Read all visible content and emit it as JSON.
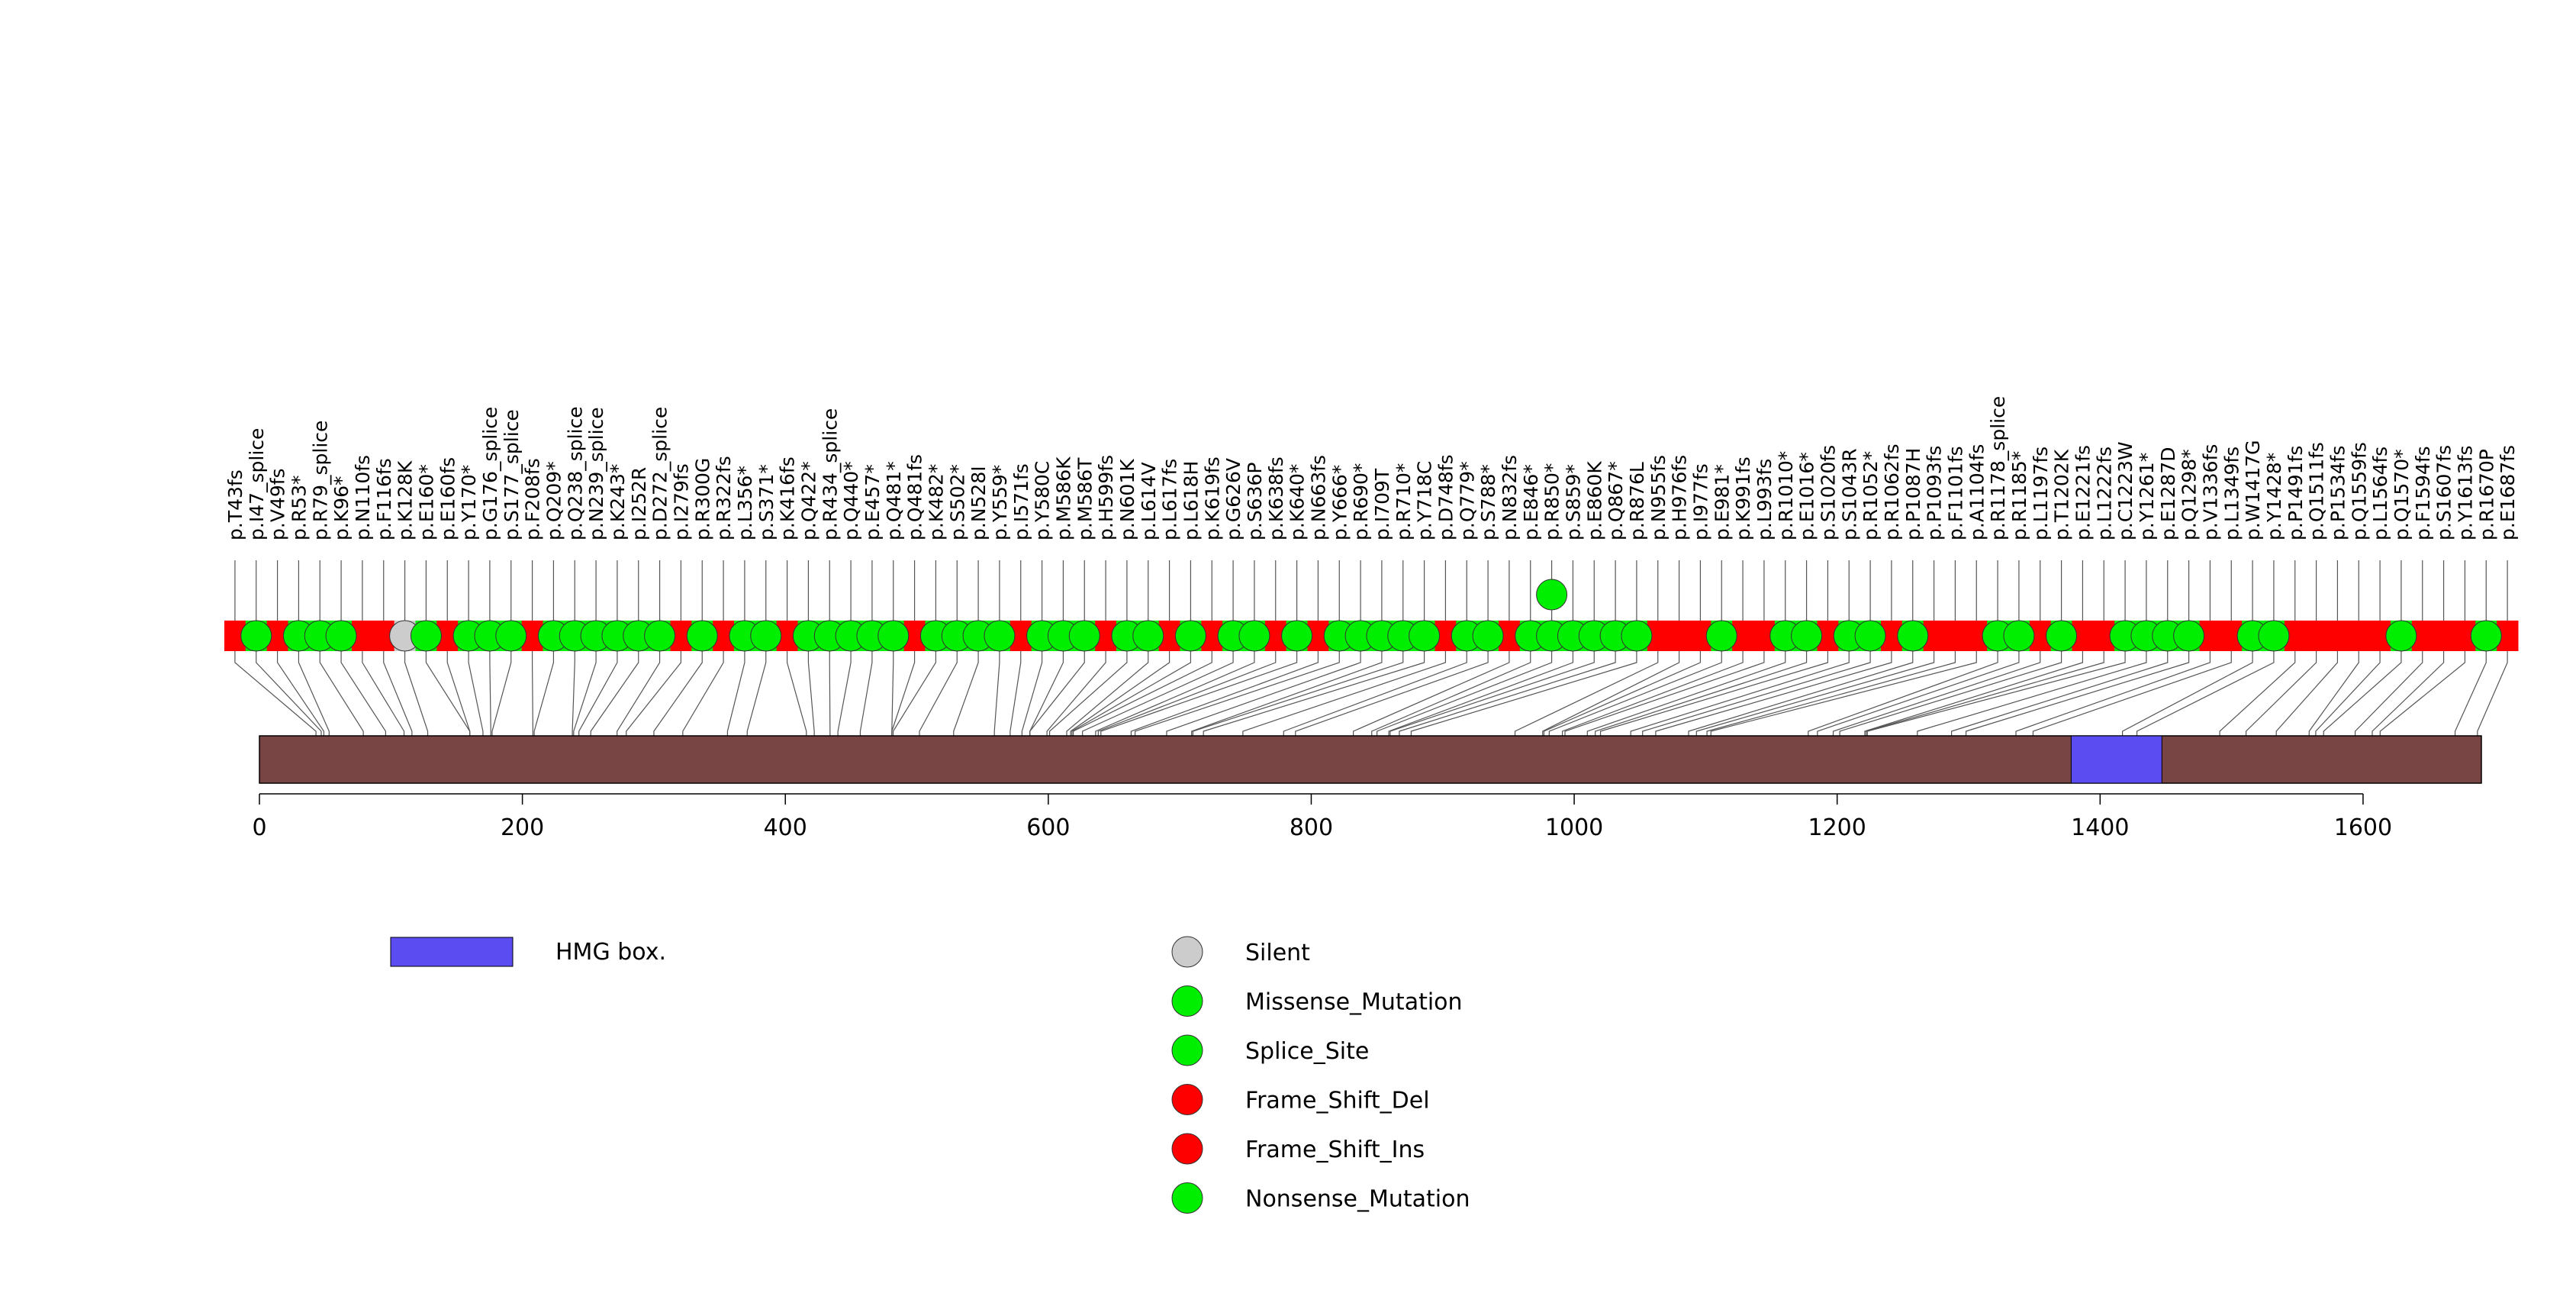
{
  "chart_data": {
    "type": "lollipop",
    "title": "",
    "xlabel": "",
    "ylabel": "",
    "xlim": [
      0,
      1690
    ],
    "protein_length": 1690,
    "x_ticks": [
      0,
      200,
      400,
      600,
      800,
      1000,
      1200,
      1400,
      1600
    ],
    "x_tick_labels": [
      "0",
      "200",
      "400",
      "600",
      "800",
      "1000",
      "1200",
      "1400",
      "1600"
    ],
    "domains": [
      {
        "name": "HMG box.",
        "start": 1378,
        "end": 1447,
        "color": "#5a4cf0"
      }
    ],
    "protein_color": "#784444",
    "mutation_colors": {
      "Silent": "#cccccc",
      "Missense_Mutation": "#00ee00",
      "Splice_Site": "#00ee00",
      "Frame_Shift_Del": "#ff0000",
      "Frame_Shift_Ins": "#ff0000",
      "Nonsense_Mutation": "#00ee00"
    },
    "legend": {
      "position": "bottom",
      "domain_entries": [
        "HMG box."
      ],
      "mutation_entries": [
        "Silent",
        "Missense_Mutation",
        "Splice_Site",
        "Frame_Shift_Del",
        "Frame_Shift_Ins",
        "Nonsense_Mutation"
      ]
    },
    "mutations": [
      {
        "label": "p.T43fs",
        "pos": 43,
        "type": "Frame_Shift_Del",
        "count": 1
      },
      {
        "label": "p.I47_splice",
        "pos": 47,
        "type": "Splice_Site",
        "count": 1
      },
      {
        "label": "p.V49fs",
        "pos": 49,
        "type": "Frame_Shift_Ins",
        "count": 1
      },
      {
        "label": "p.R53*",
        "pos": 53,
        "type": "Nonsense_Mutation",
        "count": 1
      },
      {
        "label": "p.R79_splice",
        "pos": 79,
        "type": "Splice_Site",
        "count": 1
      },
      {
        "label": "p.K96*",
        "pos": 96,
        "type": "Nonsense_Mutation",
        "count": 1
      },
      {
        "label": "p.N110fs",
        "pos": 110,
        "type": "Frame_Shift_Del",
        "count": 1
      },
      {
        "label": "p.F116fs",
        "pos": 116,
        "type": "Frame_Shift_Del",
        "count": 1
      },
      {
        "label": "p.K128K",
        "pos": 128,
        "type": "Silent",
        "count": 1
      },
      {
        "label": "p.E160*",
        "pos": 160,
        "type": "Nonsense_Mutation",
        "count": 1
      },
      {
        "label": "p.E160fs",
        "pos": 160,
        "type": "Frame_Shift_Del",
        "count": 1
      },
      {
        "label": "p.Y170*",
        "pos": 170,
        "type": "Nonsense_Mutation",
        "count": 1
      },
      {
        "label": "p.G176_splice",
        "pos": 176,
        "type": "Splice_Site",
        "count": 1
      },
      {
        "label": "p.S177_splice",
        "pos": 177,
        "type": "Splice_Site",
        "count": 1
      },
      {
        "label": "p.F208fs",
        "pos": 208,
        "type": "Frame_Shift_Del",
        "count": 1
      },
      {
        "label": "p.Q209*",
        "pos": 209,
        "type": "Nonsense_Mutation",
        "count": 1
      },
      {
        "label": "p.Q238_splice",
        "pos": 238,
        "type": "Splice_Site",
        "count": 1
      },
      {
        "label": "p.N239_splice",
        "pos": 239,
        "type": "Splice_Site",
        "count": 1
      },
      {
        "label": "p.K243*",
        "pos": 243,
        "type": "Nonsense_Mutation",
        "count": 1
      },
      {
        "label": "p.I252R",
        "pos": 252,
        "type": "Missense_Mutation",
        "count": 1
      },
      {
        "label": "p.D272_splice",
        "pos": 272,
        "type": "Splice_Site",
        "count": 1
      },
      {
        "label": "p.I279fs",
        "pos": 279,
        "type": "Frame_Shift_Del",
        "count": 1
      },
      {
        "label": "p.R300G",
        "pos": 300,
        "type": "Missense_Mutation",
        "count": 1
      },
      {
        "label": "p.R322fs",
        "pos": 322,
        "type": "Frame_Shift_Del",
        "count": 1
      },
      {
        "label": "p.L356*",
        "pos": 356,
        "type": "Nonsense_Mutation",
        "count": 1
      },
      {
        "label": "p.S371*",
        "pos": 371,
        "type": "Nonsense_Mutation",
        "count": 1
      },
      {
        "label": "p.K416fs",
        "pos": 416,
        "type": "Frame_Shift_Del",
        "count": 1
      },
      {
        "label": "p.Q422*",
        "pos": 422,
        "type": "Nonsense_Mutation",
        "count": 1
      },
      {
        "label": "p.R434_splice",
        "pos": 434,
        "type": "Splice_Site",
        "count": 1
      },
      {
        "label": "p.Q440*",
        "pos": 440,
        "type": "Nonsense_Mutation",
        "count": 1
      },
      {
        "label": "p.E457*",
        "pos": 457,
        "type": "Nonsense_Mutation",
        "count": 1
      },
      {
        "label": "p.Q481*",
        "pos": 481,
        "type": "Nonsense_Mutation",
        "count": 1
      },
      {
        "label": "p.Q481fs",
        "pos": 481,
        "type": "Frame_Shift_Del",
        "count": 1
      },
      {
        "label": "p.K482*",
        "pos": 482,
        "type": "Nonsense_Mutation",
        "count": 1
      },
      {
        "label": "p.S502*",
        "pos": 502,
        "type": "Nonsense_Mutation",
        "count": 1
      },
      {
        "label": "p.N528I",
        "pos": 528,
        "type": "Missense_Mutation",
        "count": 1
      },
      {
        "label": "p.Y559*",
        "pos": 559,
        "type": "Nonsense_Mutation",
        "count": 1
      },
      {
        "label": "p.I571fs",
        "pos": 571,
        "type": "Frame_Shift_Del",
        "count": 1
      },
      {
        "label": "p.Y580C",
        "pos": 580,
        "type": "Missense_Mutation",
        "count": 1
      },
      {
        "label": "p.M586K",
        "pos": 586,
        "type": "Missense_Mutation",
        "count": 1
      },
      {
        "label": "p.M586T",
        "pos": 586,
        "type": "Missense_Mutation",
        "count": 1
      },
      {
        "label": "p.H599fs",
        "pos": 599,
        "type": "Frame_Shift_Del",
        "count": 1
      },
      {
        "label": "p.N601K",
        "pos": 601,
        "type": "Missense_Mutation",
        "count": 1
      },
      {
        "label": "p.L614V",
        "pos": 614,
        "type": "Missense_Mutation",
        "count": 1
      },
      {
        "label": "p.L617fs",
        "pos": 617,
        "type": "Frame_Shift_Del",
        "count": 1
      },
      {
        "label": "p.L618H",
        "pos": 618,
        "type": "Missense_Mutation",
        "count": 1
      },
      {
        "label": "p.K619fs",
        "pos": 619,
        "type": "Frame_Shift_Del",
        "count": 1
      },
      {
        "label": "p.G626V",
        "pos": 626,
        "type": "Missense_Mutation",
        "count": 1
      },
      {
        "label": "p.S636P",
        "pos": 636,
        "type": "Missense_Mutation",
        "count": 1
      },
      {
        "label": "p.K638fs",
        "pos": 638,
        "type": "Frame_Shift_Del",
        "count": 1
      },
      {
        "label": "p.K640*",
        "pos": 640,
        "type": "Nonsense_Mutation",
        "count": 1
      },
      {
        "label": "p.N663fs",
        "pos": 663,
        "type": "Frame_Shift_Del",
        "count": 1
      },
      {
        "label": "p.Y666*",
        "pos": 666,
        "type": "Nonsense_Mutation",
        "count": 1
      },
      {
        "label": "p.R690*",
        "pos": 690,
        "type": "Nonsense_Mutation",
        "count": 1
      },
      {
        "label": "p.I709T",
        "pos": 709,
        "type": "Missense_Mutation",
        "count": 1
      },
      {
        "label": "p.R710*",
        "pos": 710,
        "type": "Nonsense_Mutation",
        "count": 1
      },
      {
        "label": "p.Y718C",
        "pos": 718,
        "type": "Missense_Mutation",
        "count": 1
      },
      {
        "label": "p.D748fs",
        "pos": 748,
        "type": "Frame_Shift_Del",
        "count": 1
      },
      {
        "label": "p.Q779*",
        "pos": 779,
        "type": "Nonsense_Mutation",
        "count": 1
      },
      {
        "label": "p.S788*",
        "pos": 788,
        "type": "Nonsense_Mutation",
        "count": 1
      },
      {
        "label": "p.N832fs",
        "pos": 832,
        "type": "Frame_Shift_Del",
        "count": 1
      },
      {
        "label": "p.E846*",
        "pos": 846,
        "type": "Nonsense_Mutation",
        "count": 1
      },
      {
        "label": "p.R850*",
        "pos": 850,
        "type": "Nonsense_Mutation",
        "count": 2
      },
      {
        "label": "p.S859*",
        "pos": 859,
        "type": "Nonsense_Mutation",
        "count": 1
      },
      {
        "label": "p.E860K",
        "pos": 860,
        "type": "Missense_Mutation",
        "count": 1
      },
      {
        "label": "p.Q867*",
        "pos": 867,
        "type": "Nonsense_Mutation",
        "count": 1
      },
      {
        "label": "p.R876L",
        "pos": 876,
        "type": "Missense_Mutation",
        "count": 1
      },
      {
        "label": "p.N955fs",
        "pos": 955,
        "type": "Frame_Shift_Del",
        "count": 1
      },
      {
        "label": "p.H976fs",
        "pos": 976,
        "type": "Frame_Shift_Del",
        "count": 1
      },
      {
        "label": "p.I977fs",
        "pos": 977,
        "type": "Frame_Shift_Del",
        "count": 1
      },
      {
        "label": "p.E981*",
        "pos": 981,
        "type": "Nonsense_Mutation",
        "count": 1
      },
      {
        "label": "p.K991fs",
        "pos": 991,
        "type": "Frame_Shift_Del",
        "count": 1
      },
      {
        "label": "p.L993fs",
        "pos": 993,
        "type": "Frame_Shift_Del",
        "count": 1
      },
      {
        "label": "p.R1010*",
        "pos": 1010,
        "type": "Nonsense_Mutation",
        "count": 1
      },
      {
        "label": "p.E1016*",
        "pos": 1016,
        "type": "Nonsense_Mutation",
        "count": 1
      },
      {
        "label": "p.S1020fs",
        "pos": 1020,
        "type": "Frame_Shift_Del",
        "count": 1
      },
      {
        "label": "p.S1043R",
        "pos": 1043,
        "type": "Missense_Mutation",
        "count": 1
      },
      {
        "label": "p.R1052*",
        "pos": 1052,
        "type": "Nonsense_Mutation",
        "count": 1
      },
      {
        "label": "p.R1062fs",
        "pos": 1062,
        "type": "Frame_Shift_Del",
        "count": 1
      },
      {
        "label": "p.P1087H",
        "pos": 1087,
        "type": "Missense_Mutation",
        "count": 1
      },
      {
        "label": "p.P1093fs",
        "pos": 1093,
        "type": "Frame_Shift_Del",
        "count": 1
      },
      {
        "label": "p.F1101fs",
        "pos": 1101,
        "type": "Frame_Shift_Del",
        "count": 1
      },
      {
        "label": "p.A1104fs",
        "pos": 1104,
        "type": "Frame_Shift_Del",
        "count": 1
      },
      {
        "label": "p.R1178_splice",
        "pos": 1178,
        "type": "Splice_Site",
        "count": 1
      },
      {
        "label": "p.R1185*",
        "pos": 1185,
        "type": "Nonsense_Mutation",
        "count": 1
      },
      {
        "label": "p.L1197fs",
        "pos": 1197,
        "type": "Frame_Shift_Del",
        "count": 1
      },
      {
        "label": "p.T1202K",
        "pos": 1202,
        "type": "Missense_Mutation",
        "count": 1
      },
      {
        "label": "p.E1221fs",
        "pos": 1221,
        "type": "Frame_Shift_Del",
        "count": 1
      },
      {
        "label": "p.L1222fs",
        "pos": 1222,
        "type": "Frame_Shift_Del",
        "count": 1
      },
      {
        "label": "p.C1223W",
        "pos": 1223,
        "type": "Missense_Mutation",
        "count": 1
      },
      {
        "label": "p.Y1261*",
        "pos": 1261,
        "type": "Nonsense_Mutation",
        "count": 1
      },
      {
        "label": "p.E1287D",
        "pos": 1287,
        "type": "Missense_Mutation",
        "count": 1
      },
      {
        "label": "p.Q1298*",
        "pos": 1298,
        "type": "Nonsense_Mutation",
        "count": 1
      },
      {
        "label": "p.V1336fs",
        "pos": 1336,
        "type": "Frame_Shift_Del",
        "count": 1
      },
      {
        "label": "p.L1349fs",
        "pos": 1349,
        "type": "Frame_Shift_Del",
        "count": 1
      },
      {
        "label": "p.W1417G",
        "pos": 1417,
        "type": "Missense_Mutation",
        "count": 1
      },
      {
        "label": "p.Y1428*",
        "pos": 1428,
        "type": "Nonsense_Mutation",
        "count": 1
      },
      {
        "label": "p.P1491fs",
        "pos": 1491,
        "type": "Frame_Shift_Del",
        "count": 1
      },
      {
        "label": "p.Q1511fs",
        "pos": 1511,
        "type": "Frame_Shift_Del",
        "count": 1
      },
      {
        "label": "p.P1534fs",
        "pos": 1534,
        "type": "Frame_Shift_Del",
        "count": 1
      },
      {
        "label": "p.Q1559fs",
        "pos": 1559,
        "type": "Frame_Shift_Del",
        "count": 1
      },
      {
        "label": "p.L1564fs",
        "pos": 1564,
        "type": "Frame_Shift_Del",
        "count": 1
      },
      {
        "label": "p.Q1570*",
        "pos": 1570,
        "type": "Nonsense_Mutation",
        "count": 1
      },
      {
        "label": "p.F1594fs",
        "pos": 1594,
        "type": "Frame_Shift_Del",
        "count": 1
      },
      {
        "label": "p.S1607fs",
        "pos": 1607,
        "type": "Frame_Shift_Del",
        "count": 1
      },
      {
        "label": "p.Y1613fs",
        "pos": 1613,
        "type": "Frame_Shift_Del",
        "count": 1
      },
      {
        "label": "p.R1670P",
        "pos": 1670,
        "type": "Missense_Mutation",
        "count": 1
      },
      {
        "label": "p.E1687fs",
        "pos": 1687,
        "type": "Frame_Shift_Del",
        "count": 1
      }
    ]
  }
}
